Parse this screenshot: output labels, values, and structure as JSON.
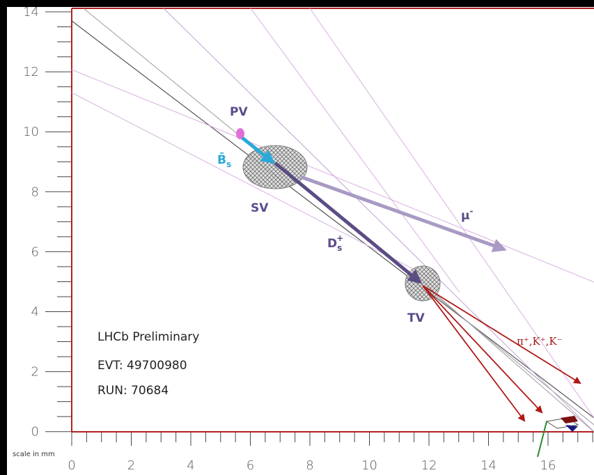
{
  "axes": {
    "y_ticks": [
      "14",
      "12",
      "10",
      "8",
      "6",
      "4",
      "2",
      "0"
    ],
    "x_ticks": [
      "0",
      "2",
      "4",
      "6",
      "8",
      "10",
      "12",
      "14",
      "16"
    ],
    "scale_label": "scale in mm"
  },
  "labels": {
    "pv": "PV",
    "b_meson": {
      "main": "B̄",
      "sub": "s"
    },
    "sv": "SV",
    "muon": {
      "main": "μ",
      "sup": "-"
    },
    "ds": {
      "main": "D",
      "sub": "s",
      "sup": "+"
    },
    "tv": "TV",
    "hadrons": "π⁺,K⁺,K⁻"
  },
  "info": [
    "LHCb Preliminary",
    "EVT: 49700980",
    "RUN: 70684"
  ]
}
